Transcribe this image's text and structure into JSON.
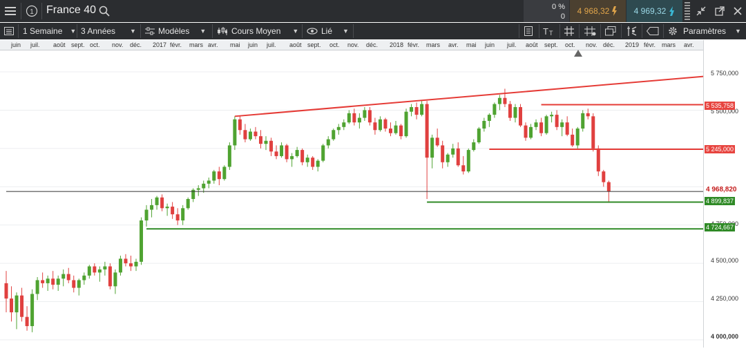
{
  "topbar": {
    "instrument": "France 40",
    "change_pct": "0 %",
    "change_val": "0",
    "sell_price": "4 968,32",
    "buy_price": "4 969,32"
  },
  "toolbar": {
    "interval": "1 Semaine",
    "range": "3 Années",
    "models": "Modèles",
    "price_type": "Cours Moyen",
    "link": "Lié",
    "settings": "Paramètres"
  },
  "timeline": [
    {
      "label": "juin",
      "x": 16
    },
    {
      "label": "juil.",
      "x": 44
    },
    {
      "label": "août",
      "x": 77
    },
    {
      "label": "sept.",
      "x": 103
    },
    {
      "label": "oct.",
      "x": 130
    },
    {
      "label": "nov.",
      "x": 162
    },
    {
      "label": "déc.",
      "x": 188
    },
    {
      "label": "2017",
      "x": 221
    },
    {
      "label": "févr.",
      "x": 246
    },
    {
      "label": "mars",
      "x": 274
    },
    {
      "label": "avr.",
      "x": 301
    },
    {
      "label": "mai",
      "x": 333
    },
    {
      "label": "juin",
      "x": 359
    },
    {
      "label": "juil.",
      "x": 386
    },
    {
      "label": "août",
      "x": 419
    },
    {
      "label": "sept.",
      "x": 445
    },
    {
      "label": "oct.",
      "x": 477
    },
    {
      "label": "nov.",
      "x": 503
    },
    {
      "label": "déc.",
      "x": 530
    },
    {
      "label": "2018",
      "x": 564
    },
    {
      "label": "févr.",
      "x": 590
    },
    {
      "label": "mars",
      "x": 617
    },
    {
      "label": "avr.",
      "x": 649
    },
    {
      "label": "mai",
      "x": 675
    },
    {
      "label": "juin",
      "x": 702
    },
    {
      "label": "juil.",
      "x": 734
    },
    {
      "label": "août",
      "x": 761
    },
    {
      "label": "sept.",
      "x": 788
    },
    {
      "label": "oct.",
      "x": 818
    },
    {
      "label": "nov.",
      "x": 848
    },
    {
      "label": "déc.",
      "x": 873
    },
    {
      "label": "2019",
      "x": 905
    },
    {
      "label": "févr.",
      "x": 932
    },
    {
      "label": "mars",
      "x": 958
    },
    {
      "label": "avr.",
      "x": 990
    }
  ],
  "yaxis": {
    "ticks": [
      "5 750,000",
      "5 500,000",
      "4 750,000",
      "4 500,000",
      "4 250,000",
      "4 000,000"
    ],
    "current_price": "4 968,820",
    "resistance_1": "5 535,758",
    "resistance_2": "5 245,000",
    "support_1": "4 899,837",
    "support_2": "4 724,667"
  },
  "colors": {
    "up": "#4fa331",
    "down": "#e0403f",
    "trend": "#e53b36",
    "support": "#2f8a26"
  },
  "chart_data": {
    "type": "candlestick",
    "interval": "1 Semaine",
    "range": "3 Années",
    "candles": [
      [
        4370,
        4450,
        4180,
        4270
      ],
      [
        4270,
        4350,
        4120,
        4180
      ],
      [
        4180,
        4310,
        4070,
        4290
      ],
      [
        4290,
        4340,
        4120,
        4150
      ],
      [
        4150,
        4220,
        4060,
        4090
      ],
      [
        4090,
        4330,
        4050,
        4300
      ],
      [
        4300,
        4410,
        4260,
        4390
      ],
      [
        4390,
        4440,
        4340,
        4370
      ],
      [
        4370,
        4420,
        4320,
        4400
      ],
      [
        4400,
        4450,
        4330,
        4360
      ],
      [
        4360,
        4420,
        4320,
        4400
      ],
      [
        4400,
        4460,
        4350,
        4430
      ],
      [
        4430,
        4470,
        4370,
        4390
      ],
      [
        4390,
        4420,
        4310,
        4340
      ],
      [
        4340,
        4400,
        4290,
        4390
      ],
      [
        4390,
        4440,
        4360,
        4420
      ],
      [
        4420,
        4490,
        4400,
        4480
      ],
      [
        4480,
        4500,
        4420,
        4440
      ],
      [
        4440,
        4480,
        4380,
        4460
      ],
      [
        4460,
        4510,
        4420,
        4480
      ],
      [
        4480,
        4500,
        4330,
        4350
      ],
      [
        4350,
        4460,
        4300,
        4440
      ],
      [
        4440,
        4550,
        4420,
        4530
      ],
      [
        4530,
        4560,
        4480,
        4500
      ],
      [
        4500,
        4550,
        4450,
        4480
      ],
      [
        4480,
        4530,
        4450,
        4510
      ],
      [
        4510,
        4800,
        4490,
        4780
      ],
      [
        4780,
        4880,
        4740,
        4850
      ],
      [
        4850,
        4920,
        4800,
        4880
      ],
      [
        4880,
        4940,
        4850,
        4930
      ],
      [
        4930,
        4950,
        4840,
        4860
      ],
      [
        4860,
        4890,
        4810,
        4870
      ],
      [
        4870,
        4900,
        4790,
        4820
      ],
      [
        4820,
        4860,
        4750,
        4780
      ],
      [
        4780,
        4880,
        4750,
        4860
      ],
      [
        4860,
        4930,
        4850,
        4920
      ],
      [
        4920,
        4990,
        4900,
        4980
      ],
      [
        4980,
        5010,
        4940,
        4990
      ],
      [
        4990,
        5040,
        4960,
        5020
      ],
      [
        5020,
        5060,
        4990,
        5040
      ],
      [
        5040,
        5110,
        5020,
        5100
      ],
      [
        5100,
        5130,
        5010,
        5050
      ],
      [
        5050,
        5140,
        5040,
        5130
      ],
      [
        5130,
        5290,
        5110,
        5270
      ],
      [
        5270,
        5460,
        5240,
        5440
      ],
      [
        5440,
        5460,
        5340,
        5370
      ],
      [
        5370,
        5410,
        5290,
        5310
      ],
      [
        5310,
        5380,
        5300,
        5360
      ],
      [
        5360,
        5390,
        5310,
        5330
      ],
      [
        5330,
        5370,
        5250,
        5280
      ],
      [
        5280,
        5330,
        5240,
        5300
      ],
      [
        5300,
        5320,
        5200,
        5230
      ],
      [
        5230,
        5270,
        5180,
        5200
      ],
      [
        5200,
        5290,
        5190,
        5270
      ],
      [
        5270,
        5280,
        5160,
        5180
      ],
      [
        5180,
        5220,
        5130,
        5200
      ],
      [
        5200,
        5260,
        5190,
        5240
      ],
      [
        5240,
        5250,
        5140,
        5160
      ],
      [
        5160,
        5210,
        5130,
        5190
      ],
      [
        5190,
        5200,
        5110,
        5130
      ],
      [
        5130,
        5180,
        5100,
        5170
      ],
      [
        5170,
        5280,
        5160,
        5270
      ],
      [
        5270,
        5330,
        5250,
        5310
      ],
      [
        5310,
        5380,
        5300,
        5370
      ],
      [
        5370,
        5410,
        5340,
        5390
      ],
      [
        5390,
        5440,
        5370,
        5420
      ],
      [
        5420,
        5500,
        5410,
        5480
      ],
      [
        5480,
        5510,
        5400,
        5420
      ],
      [
        5420,
        5480,
        5380,
        5450
      ],
      [
        5450,
        5520,
        5430,
        5500
      ],
      [
        5500,
        5520,
        5400,
        5420
      ],
      [
        5420,
        5450,
        5340,
        5370
      ],
      [
        5370,
        5460,
        5360,
        5440
      ],
      [
        5440,
        5450,
        5360,
        5380
      ],
      [
        5380,
        5420,
        5330,
        5350
      ],
      [
        5350,
        5430,
        5340,
        5400
      ],
      [
        5400,
        5410,
        5310,
        5330
      ],
      [
        5330,
        5510,
        5320,
        5490
      ],
      [
        5490,
        5540,
        5460,
        5520
      ],
      [
        5520,
        5550,
        5440,
        5470
      ],
      [
        5470,
        5560,
        5460,
        5540
      ],
      [
        5540,
        5560,
        4920,
        5190
      ],
      [
        5190,
        5340,
        5120,
        5320
      ],
      [
        5320,
        5380,
        5260,
        5270
      ],
      [
        5270,
        5300,
        5120,
        5160
      ],
      [
        5160,
        5220,
        5130,
        5210
      ],
      [
        5210,
        5280,
        5190,
        5250
      ],
      [
        5250,
        5290,
        5130,
        5140
      ],
      [
        5140,
        5200,
        5080,
        5100
      ],
      [
        5100,
        5250,
        5090,
        5240
      ],
      [
        5240,
        5310,
        5230,
        5290
      ],
      [
        5290,
        5390,
        5280,
        5380
      ],
      [
        5380,
        5450,
        5360,
        5430
      ],
      [
        5430,
        5480,
        5390,
        5470
      ],
      [
        5470,
        5550,
        5450,
        5540
      ],
      [
        5540,
        5600,
        5500,
        5580
      ],
      [
        5580,
        5640,
        5520,
        5540
      ],
      [
        5540,
        5560,
        5430,
        5450
      ],
      [
        5450,
        5540,
        5420,
        5520
      ],
      [
        5520,
        5540,
        5390,
        5400
      ],
      [
        5400,
        5420,
        5300,
        5320
      ],
      [
        5320,
        5410,
        5310,
        5390
      ],
      [
        5390,
        5440,
        5370,
        5420
      ],
      [
        5420,
        5450,
        5330,
        5350
      ],
      [
        5350,
        5470,
        5340,
        5460
      ],
      [
        5460,
        5490,
        5420,
        5470
      ],
      [
        5470,
        5500,
        5370,
        5390
      ],
      [
        5390,
        5440,
        5330,
        5420
      ],
      [
        5420,
        5460,
        5330,
        5340
      ],
      [
        5340,
        5380,
        5260,
        5270
      ],
      [
        5270,
        5390,
        5250,
        5380
      ],
      [
        5380,
        5500,
        5360,
        5480
      ],
      [
        5480,
        5510,
        5440,
        5460
      ],
      [
        5460,
        5480,
        5230,
        5250
      ],
      [
        5250,
        5270,
        5070,
        5100
      ],
      [
        5100,
        5110,
        5000,
        5030
      ],
      [
        5030,
        5040,
        4895,
        4969
      ]
    ],
    "trendline": {
      "from": {
        "index": 44,
        "value": 5460
      },
      "to": {
        "index": 134,
        "value": 5720
      }
    },
    "levels": [
      {
        "name": "resistance-1",
        "value": 5535.758,
        "from_index": 103
      },
      {
        "name": "resistance-2",
        "value": 5245,
        "from_index": 93
      },
      {
        "name": "current",
        "value": 4968.82,
        "from_index": 0
      },
      {
        "name": "support-1",
        "value": 4899.837,
        "from_index": 81
      },
      {
        "name": "support-2",
        "value": 4724.667,
        "from_index": 27
      }
    ],
    "ylim": [
      3950,
      5890
    ]
  }
}
